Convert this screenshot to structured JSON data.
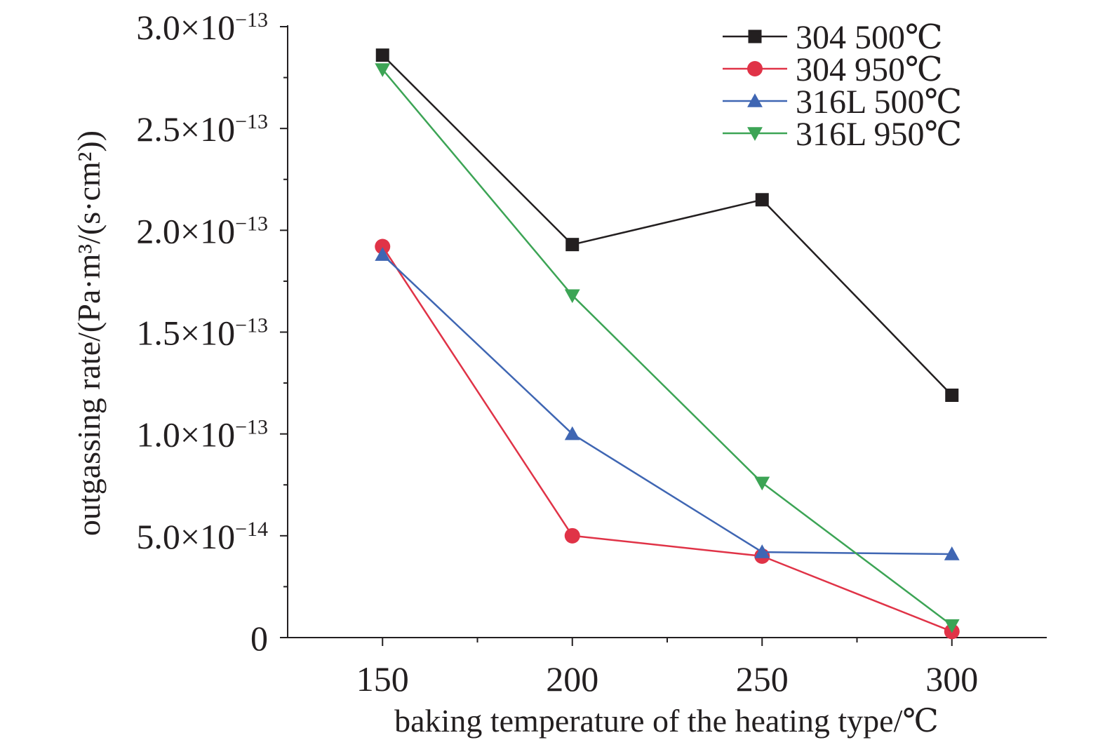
{
  "chart_data": {
    "type": "line",
    "xlabel": "baking temperature of the heating type/℃",
    "ylabel": "outgassing rate/(Pa·m³/(s·cm²))",
    "x": [
      150,
      200,
      250,
      300
    ],
    "xlim": [
      125,
      325
    ],
    "xticks": [
      "150",
      "200",
      "250",
      "300"
    ],
    "ylim": [
      0,
      3e-13
    ],
    "yticks": [
      {
        "value": 0,
        "mantissa": "0",
        "exponent": ""
      },
      {
        "value": 5e-14,
        "mantissa": "5.0×10",
        "exponent": "−14"
      },
      {
        "value": 1e-13,
        "mantissa": "1.0×10",
        "exponent": "−13"
      },
      {
        "value": 1.5e-13,
        "mantissa": "1.5×10",
        "exponent": "−13"
      },
      {
        "value": 2e-13,
        "mantissa": "2.0×10",
        "exponent": "−13"
      },
      {
        "value": 2.5e-13,
        "mantissa": "2.5×10",
        "exponent": "−13"
      },
      {
        "value": 3e-13,
        "mantissa": "3.0×10",
        "exponent": "−13"
      }
    ],
    "grid": false,
    "legend_position": "top-right",
    "series": [
      {
        "name": "304 500℃",
        "color": "#231f20",
        "marker": "square",
        "values": [
          2.86e-13,
          1.93e-13,
          2.15e-13,
          1.19e-13
        ]
      },
      {
        "name": "304 950℃",
        "color": "#e03347",
        "marker": "circle",
        "values": [
          1.92e-13,
          5e-14,
          4e-14,
          3e-15
        ]
      },
      {
        "name": "316L 500℃",
        "color": "#3f66b3",
        "marker": "triangle-up",
        "values": [
          1.88e-13,
          1e-13,
          4.2e-14,
          4.1e-14
        ]
      },
      {
        "name": "316L 950℃",
        "color": "#3ca455",
        "marker": "triangle-down",
        "values": [
          2.79e-13,
          1.68e-13,
          7.6e-14,
          6e-15
        ]
      }
    ]
  }
}
